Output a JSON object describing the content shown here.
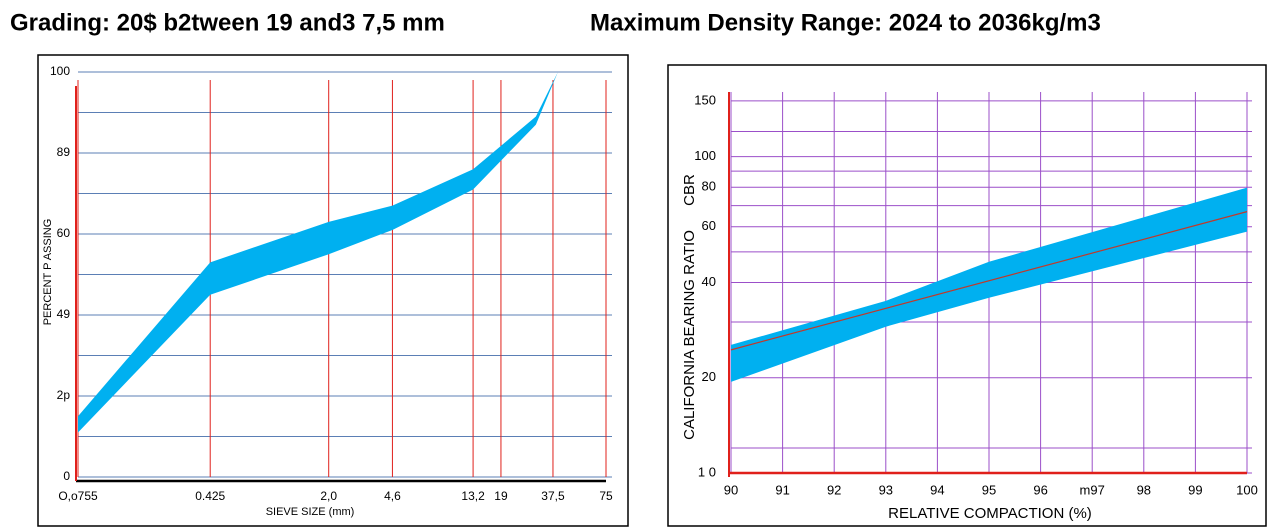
{
  "chart_data": [
    {
      "type": "area",
      "title": "Grading:  20$ b2tween 19 and3 7,5 mm",
      "x_label": "SIEVE SIZE (mm)",
      "y_label": "PERCENT P ASSING",
      "xlog": true,
      "xlim": [
        0.0755,
        75
      ],
      "xticks": [
        {
          "value": 0.0755,
          "label": "O,o755"
        },
        0.425,
        {
          "value": 2,
          "label": "2,0"
        },
        {
          "value": 4.6,
          "label": "4,6"
        },
        {
          "value": 13.2,
          "label": "13,2"
        },
        19,
        {
          "value": 37.5,
          "label": "37,5"
        },
        75
      ],
      "ylim": [
        0,
        100
      ],
      "yticks": [
        0,
        {
          "value": 20,
          "label": "2p"
        },
        {
          "value": 40,
          "label": "49"
        },
        60,
        {
          "value": 80,
          "label": "89"
        },
        100
      ],
      "minor_yticks": [
        10,
        30,
        50,
        70,
        90
      ],
      "grid": true,
      "grid_color": "#5b7fb5",
      "xgrid_color": "#e0201b",
      "series": [
        {
          "type": "band",
          "color": "#00b0f0",
          "x": [
            0.0755,
            0.425,
            2,
            4.6,
            13.2,
            30,
            40
          ],
          "upper": [
            15,
            53,
            63,
            67,
            76,
            89,
            100
          ],
          "lower": [
            11,
            45,
            55,
            61,
            71,
            87,
            100
          ]
        }
      ]
    },
    {
      "type": "area",
      "title": "Maximum Density Range: 2024 to 2036kg/m3",
      "x_label": "RELATIVE COMPACTION  (%)",
      "y_label": "CALIFORNIA BEARING RATIO",
      "y_label_2": "CBR",
      "ylog": true,
      "xlim": [
        90,
        100
      ],
      "xticks": [
        90,
        91,
        92,
        93,
        94,
        95,
        96,
        {
          "value": 97,
          "label": "m97"
        },
        98,
        99,
        100
      ],
      "ylim": [
        10,
        160
      ],
      "yticks": [
        {
          "value": 10,
          "label": "1 0"
        },
        20,
        40,
        60,
        80,
        100,
        150
      ],
      "minor_yticks": [
        12,
        30,
        50,
        70,
        90,
        120
      ],
      "grid": true,
      "grid_color": "#9b4fc9",
      "xgrid_color": "#9b4fc9",
      "series": [
        {
          "type": "band",
          "color": "#00b0f0",
          "x": [
            90,
            93,
            95,
            100
          ],
          "upper": [
            25.4,
            35,
            46.5,
            79.8
          ],
          "lower": [
            19.4,
            29,
            35.8,
            57.9
          ]
        },
        {
          "type": "line",
          "color": "#c0392b",
          "x": [
            90,
            100
          ],
          "values": [
            24.5,
            67
          ]
        }
      ]
    }
  ]
}
